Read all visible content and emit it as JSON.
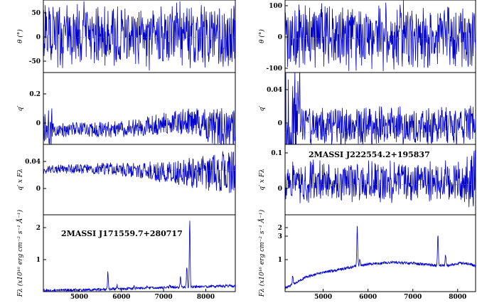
{
  "line_color": "#0000cc",
  "chart_data": [
    {
      "type": "line",
      "column": "left",
      "x": {
        "range": [
          4150,
          8700
        ],
        "tick_labels": [
          "5000",
          "6000",
          "7000",
          "8000"
        ]
      },
      "panels": [
        {
          "ylabel": "θ (°)",
          "ylim": [
            -90,
            95
          ],
          "tick_labels": [
            "50",
            "0",
            "-50"
          ],
          "description": "noisy, full range"
        },
        {
          "ylabel": "q′",
          "ylim": [
            -0.1,
            0.38
          ],
          "tick_labels": [
            "0.2",
            "0"
          ],
          "description": "noisy with broad bump near 7000-7500"
        },
        {
          "ylabel": "q′ x Fλ",
          "ylim": [
            -0.11,
            0.065
          ],
          "tick_labels": [
            "0.04",
            "0"
          ],
          "description": "noise increasing to red"
        },
        {
          "ylabel": "Fλ (x10¹⁶ erg cm⁻² s⁻¹ Å⁻¹)",
          "ylim": [
            0,
            2.25
          ],
          "tick_labels": [
            "2",
            "1"
          ],
          "annotation": "2MASSI J171559.7+280717",
          "spectrum": {
            "continuum": [
              [
                4150,
                0.03
              ],
              [
                5000,
                0.05
              ],
              [
                6000,
                0.08
              ],
              [
                7000,
                0.12
              ],
              [
                8000,
                0.15
              ],
              [
                8700,
                0.17
              ]
            ],
            "lines": [
              {
                "x": 5680,
                "height": 0.5
              },
              {
                "x": 5900,
                "height": 0.12
              },
              {
                "x": 6300,
                "height": 0.06
              },
              {
                "x": 6600,
                "height": 0.05
              },
              {
                "x": 7150,
                "height": 0.06
              },
              {
                "x": 7400,
                "height": 0.3
              },
              {
                "x": 7550,
                "height": 0.6
              },
              {
                "x": 7620,
                "height": 1.98
              }
            ]
          }
        }
      ]
    },
    {
      "type": "line",
      "column": "right",
      "x": {
        "range": [
          4150,
          8400
        ],
        "tick_labels": [
          "5000",
          "6000",
          "7000",
          "8000"
        ]
      },
      "panels": [
        {
          "ylabel": "θ (°)",
          "ylim": [
            -100,
            115
          ],
          "tick_labels": [
            "100",
            "0",
            "-100"
          ],
          "description": "noisy, full range"
        },
        {
          "ylabel": "q′",
          "ylim": [
            -0.01,
            0.05
          ],
          "tick_labels": [
            "0.04",
            "0"
          ],
          "description": "very noisy near blue end"
        },
        {
          "ylabel": "q′ x Fλ",
          "ylim": [
            -0.09,
            0.12
          ],
          "tick_labels": [
            "0.1",
            "0"
          ],
          "annotation": "2MASSI J222554.2+195837",
          "description": "noisy"
        },
        {
          "ylabel": "Fλ (x10¹⁶ erg cm⁻² s⁻¹ Å⁻¹)",
          "ylim": [
            0.2,
            4.0
          ],
          "tick_labels": [
            "3",
            "2",
            "1"
          ],
          "spectrum": {
            "continuum": [
              [
                4150,
                0.35
              ],
              [
                4350,
                0.6
              ],
              [
                4600,
                0.9
              ],
              [
                5000,
                1.15
              ],
              [
                5500,
                1.35
              ],
              [
                5700,
                1.45
              ],
              [
                6000,
                1.55
              ],
              [
                6500,
                1.65
              ],
              [
                7000,
                1.6
              ],
              [
                7500,
                1.5
              ],
              [
                7800,
                1.5
              ],
              [
                8000,
                1.6
              ],
              [
                8200,
                1.6
              ],
              [
                8400,
                1.48
              ]
            ],
            "lines": [
              {
                "x": 5760,
                "height": 1.95
              },
              {
                "x": 5820,
                "height": 0.3
              },
              {
                "x": 7560,
                "height": 1.55
              },
              {
                "x": 7730,
                "height": 0.5
              },
              {
                "x": 4320,
                "height": 0.45
              }
            ]
          }
        }
      ]
    }
  ]
}
